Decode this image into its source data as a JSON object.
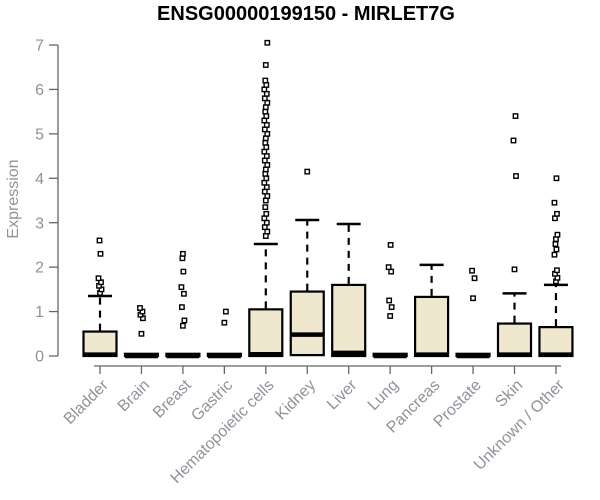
{
  "window": {
    "background": "#ffffff"
  },
  "chart_data": {
    "type": "boxplot",
    "title": "ENSG00000199150 - MIRLET7G",
    "ylabel": "Expression",
    "xlabel": "",
    "ylim": [
      0,
      7.1
    ],
    "yticks": [
      0,
      1,
      2,
      3,
      4,
      5,
      6,
      7
    ],
    "grid": false,
    "legend": "none",
    "categories": [
      "Bladder",
      "Brain",
      "Breast",
      "Gastric",
      "Hematopoietic cells",
      "Kidney",
      "Liver",
      "Lung",
      "Pancreas",
      "Prostate",
      "Skin",
      "Unknown / Other"
    ],
    "series": [
      {
        "category": "Bladder",
        "q1": 0,
        "median": 0.03,
        "q3": 0.55,
        "whisker_low": 0,
        "whisker_high": 1.35,
        "outliers": [
          1.42,
          1.5,
          1.58,
          1.66,
          1.75,
          2.3,
          2.6
        ]
      },
      {
        "category": "Brain",
        "q1": 0,
        "median": 0,
        "q3": 0.05,
        "whisker_low": 0,
        "whisker_high": 0.05,
        "outliers": [
          0.5,
          0.85,
          0.93,
          1.0,
          1.08
        ]
      },
      {
        "category": "Breast",
        "q1": 0,
        "median": 0,
        "q3": 0.05,
        "whisker_low": 0,
        "whisker_high": 0.05,
        "outliers": [
          0.68,
          0.8,
          1.1,
          1.4,
          1.55,
          1.9,
          2.2,
          2.3
        ]
      },
      {
        "category": "Gastric",
        "q1": 0,
        "median": 0,
        "q3": 0.05,
        "whisker_low": 0,
        "whisker_high": 0.05,
        "outliers": [
          0.75,
          1.0
        ]
      },
      {
        "category": "Hematopoietic cells",
        "q1": 0,
        "median": 0.04,
        "q3": 1.05,
        "whisker_low": 0,
        "whisker_high": 2.52,
        "outliers": [
          2.7,
          2.8,
          2.9,
          3.0,
          3.1,
          3.2,
          3.35,
          3.5,
          3.6,
          3.7,
          3.8,
          3.9,
          4.0,
          4.1,
          4.2,
          4.3,
          4.4,
          4.5,
          4.6,
          4.7,
          4.8,
          4.9,
          5.0,
          5.1,
          5.2,
          5.3,
          5.4,
          5.5,
          5.6,
          5.7,
          5.8,
          5.9,
          6.0,
          6.1,
          6.2,
          6.55,
          7.05
        ]
      },
      {
        "category": "Kidney",
        "q1": 0.02,
        "median": 0.48,
        "q3": 1.45,
        "whisker_low": 0.02,
        "whisker_high": 3.06,
        "outliers": [
          4.15
        ]
      },
      {
        "category": "Liver",
        "q1": 0,
        "median": 0.07,
        "q3": 1.6,
        "whisker_low": 0,
        "whisker_high": 2.97,
        "outliers": []
      },
      {
        "category": "Lung",
        "q1": 0,
        "median": 0,
        "q3": 0.05,
        "whisker_low": 0,
        "whisker_high": 0.05,
        "outliers": [
          0.9,
          1.1,
          1.25,
          1.9,
          2.0,
          2.5
        ]
      },
      {
        "category": "Pancreas",
        "q1": 0,
        "median": 0.03,
        "q3": 1.33,
        "whisker_low": 0,
        "whisker_high": 2.05,
        "outliers": []
      },
      {
        "category": "Prostate",
        "q1": 0,
        "median": 0,
        "q3": 0.05,
        "whisker_low": 0,
        "whisker_high": 0.05,
        "outliers": [
          1.3,
          1.75,
          1.92
        ]
      },
      {
        "category": "Skin",
        "q1": 0,
        "median": 0.03,
        "q3": 0.73,
        "whisker_low": 0,
        "whisker_high": 1.41,
        "outliers": [
          1.95,
          4.05,
          4.85,
          5.4
        ]
      },
      {
        "category": "Unknown / Other",
        "q1": 0,
        "median": 0.03,
        "q3": 0.65,
        "whisker_low": 0,
        "whisker_high": 1.6,
        "outliers": [
          1.68,
          1.76,
          1.85,
          1.93,
          2.28,
          2.4,
          2.52,
          2.63,
          2.73,
          3.1,
          3.2,
          3.45,
          4.0
        ]
      }
    ],
    "colors": {
      "box_fill": "#efe8cf",
      "box_stroke": "#000000",
      "median": "#000000",
      "whisker": "#000000",
      "outlier_fill": "#ffffff",
      "outlier_stroke": "#000000",
      "axis": "#666666",
      "tick_label": "#8f9399",
      "title": "#000000",
      "background": "#ffffff"
    }
  }
}
